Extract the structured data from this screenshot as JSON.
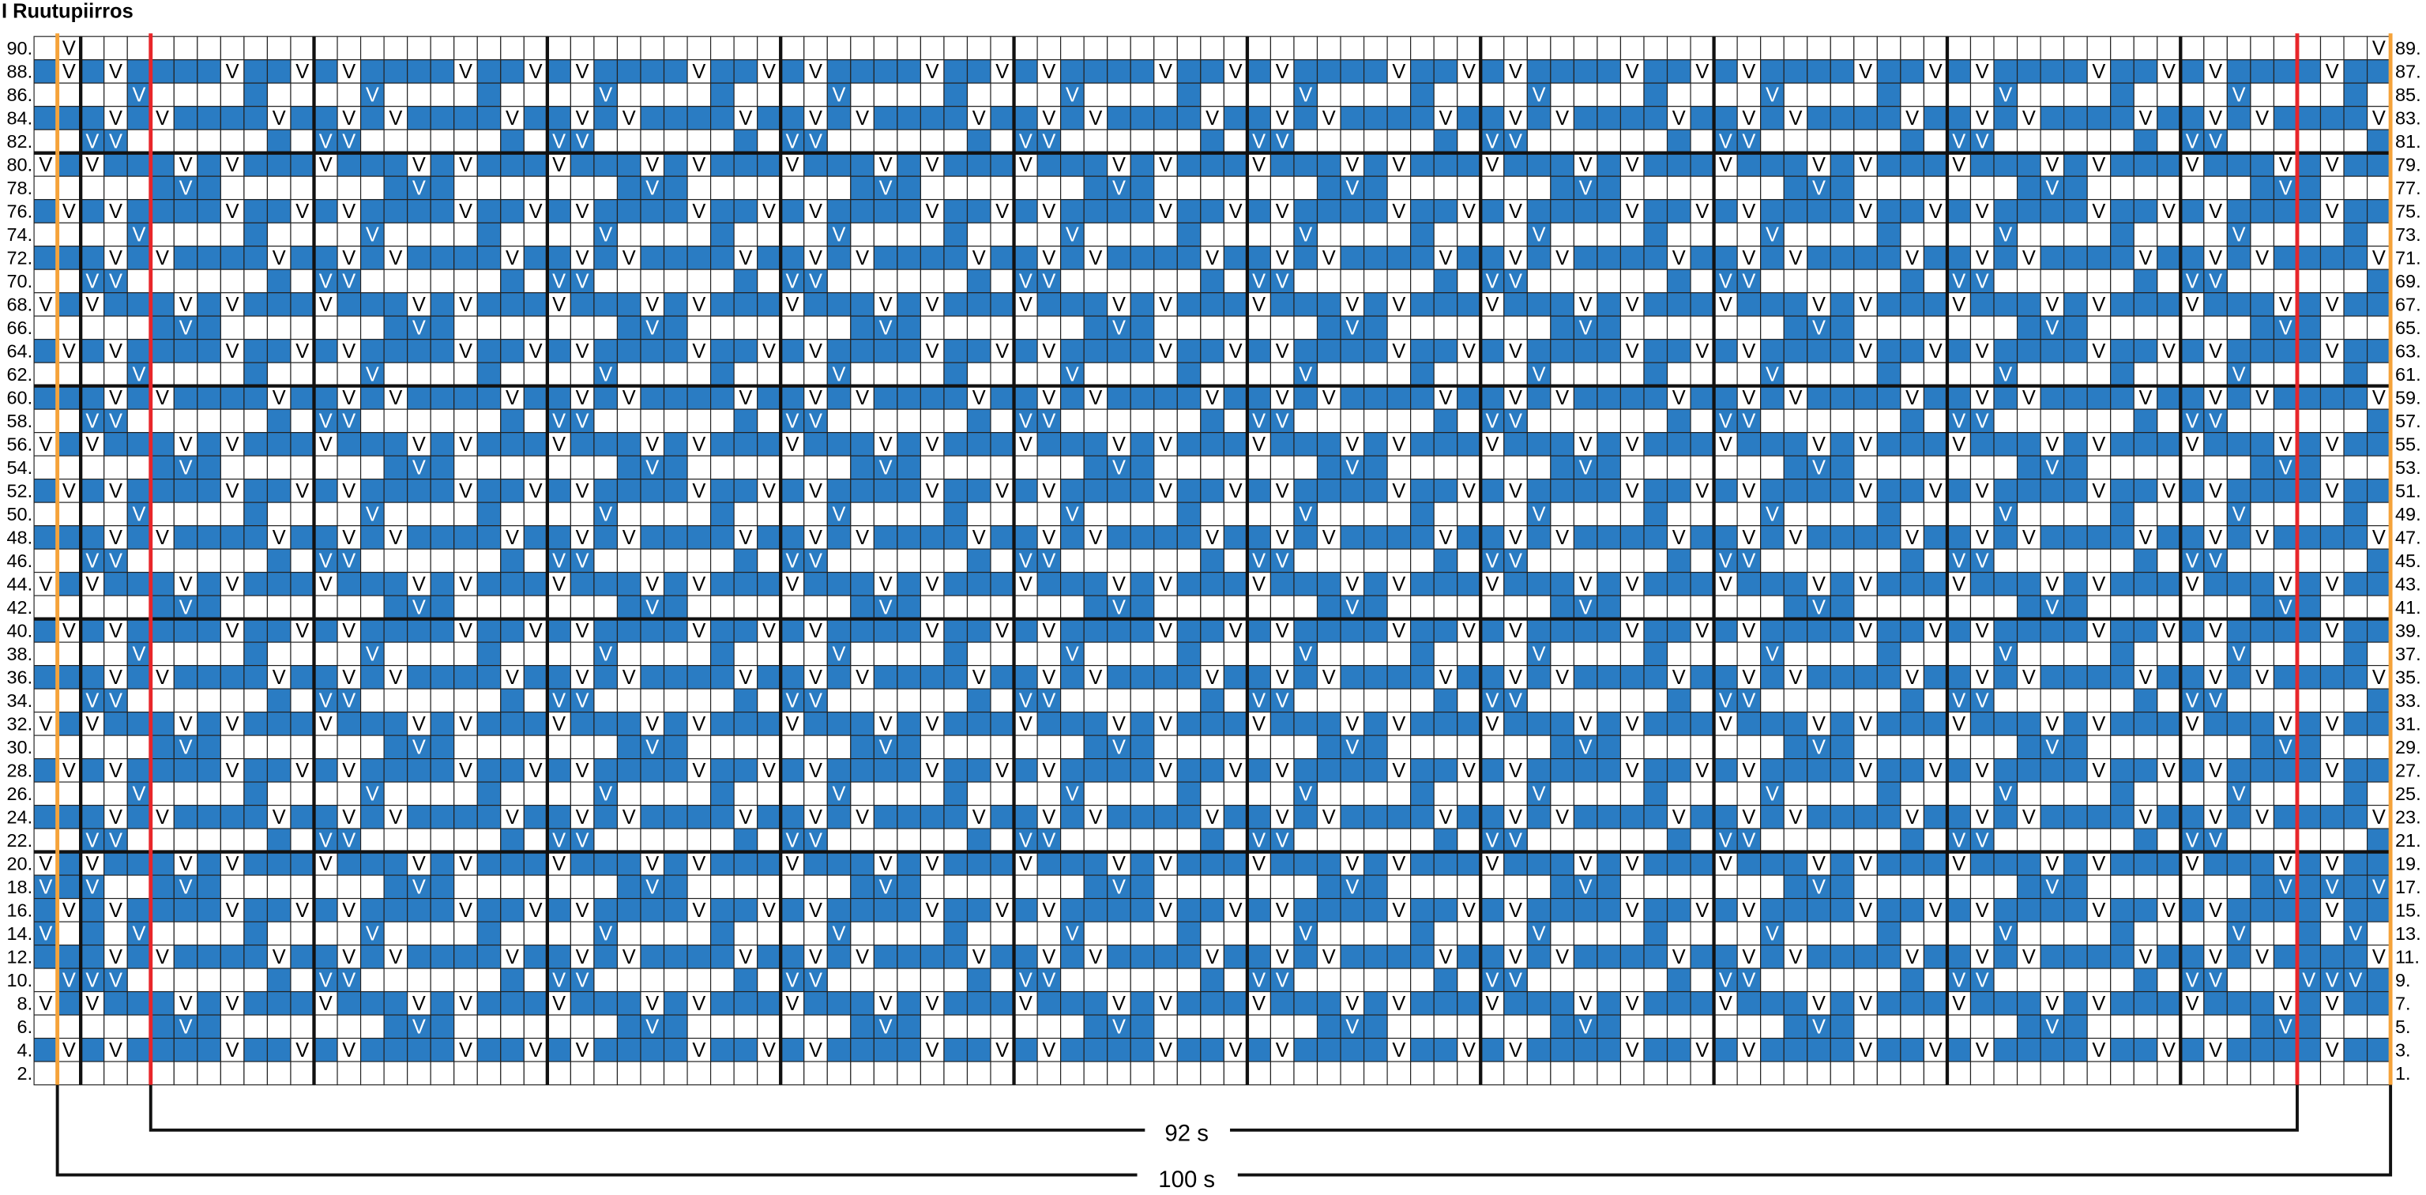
{
  "header": {
    "title": "I Ruutupiirros"
  },
  "grid": {
    "symbol": "V",
    "left_labels": [
      "90.",
      "88.",
      "86.",
      "84.",
      "82.",
      "80.",
      "78.",
      "76.",
      "74.",
      "72.",
      "70.",
      "68.",
      "66.",
      "64.",
      "62.",
      "60.",
      "58.",
      "56.",
      "54.",
      "52.",
      "50.",
      "48.",
      "46.",
      "44.",
      "42.",
      "40.",
      "38.",
      "36.",
      "34.",
      "32.",
      "30.",
      "28.",
      "26.",
      "24.",
      "22.",
      "20.",
      "18.",
      "16.",
      "14.",
      "12.",
      "10.",
      "8.",
      "6.",
      "4.",
      "2."
    ],
    "right_labels": [
      "89.",
      "87.",
      "85.",
      "83.",
      "81.",
      "79.",
      "77.",
      "75.",
      "73.",
      "71.",
      "69.",
      "67.",
      "65.",
      "63.",
      "61.",
      "59.",
      "57.",
      "55.",
      "53.",
      "51.",
      "49.",
      "47.",
      "45.",
      "43.",
      "41.",
      "39.",
      "37.",
      "35.",
      "33.",
      "31.",
      "29.",
      "27.",
      "25.",
      "23.",
      "21.",
      "19.",
      "17.",
      "15.",
      "13.",
      "11.",
      "9.",
      "7.",
      "5.",
      "3.",
      "1."
    ],
    "rows": [
      "wVwwwwwwwwwwwwwwwwwwwwwwwwwwwwwwwwwwwwwwwwwwwwwwwwwwwwwwwwwwwwwwwwwwwwwwwwwwwwwwwwwwwwwwwwwwwwwwwwwwV",
      "bVbVbbbbVbbVbVbbbbVbbVbVbbbbVbbVbVbbbbVbbVbVbbbbVbbVbVbbbbVbbVbVbbbbVbbVbVbbbbVbbVbVbbbbVbbVbVbbbbVbb",
      "wwwwvwwwwbwwwwvwwwwbwwwwvwwwwbwwwwvwwwwbwwwwvwwwwbwwwwvwwwwbwwwwvwwwwbwwwwvwwwwbwwwwvwwwwbwwwwvwwwwbw",
      "bbbVbVbbbbVbbVbVbbbbVbbVbVbbbbVbbVbVbbbbVbbVbVbbbbVbbVbVbbbbVbbVbVbbbbVbbVbVbbbbVbbVbVbbbbVbbVbVbbbbV",
      "wwvvwwwwwwbwvvwwwwwwbwvvwwwwwwbwvvwwwwwwbwvvwwwwwwbwvvwwwwwwbwvvwwwwwwbwvvwwwwwwbwvvwwwwwwbwvvwwwwwwb",
      "VbVbbbVbVbbbVbbbVbVbbbVbbbVbVbbbVbbbVbVbbbVbbbVbVbbbVbbbVbVbbbVbbbVbVbbbVbbbVbVbbbVbbbVbVbbbVbbbVbVbb",
      "wwwwwbvbwwwwwwwbvbwwwwwwwbvbwwwwwwwbvbwwwwwwwbvbwwwwwwwbvbwwwwwwwbvbwwwwwwwbvbwwwwwwwbvbwwwwwwwbvbwww",
      "bVbVbbbbVbbVbVbbbbVbbVbVbbbbVbbVbVbbbbVbbVbVbbbbVbbVbVbbbbVbbVbVbbbbVbbVbVbbbbVbbVbVbbbbVbbVbVbbbbVbb",
      "wwwwvwwwwbwwwwvwwwwbwwwwvwwwwbwwwwvwwwwbwwwwvwwwwbwwwwvwwwwbwwwwvwwwwbwwwwvwwwwbwwwwvwwwwbwwwwvwwwwbw",
      "bbbVbVbbbbVbbVbVbbbbVbbVbVbbbbVbbVbVbbbbVbbVbVbbbbVbbVbVbbbbVbbVbVbbbbVbbVbVbbbbVbbVbVbbbbVbbVbVbbbbV",
      "wwvvwwwwwwbwvvwwwwwwbwvvwwwwwwbwvvwwwwwwbwvvwwwwwwbwvvwwwwwwbwvvwwwwwwbwvvwwwwwwbwvvwwwwwwbwvvwwwwwwb",
      "VbVbbbVbVbbbVbbbVbVbbbVbbbVbVbbbVbbbVbVbbbVbbbVbVbbbVbbbVbVbbbVbbbVbVbbbVbbbVbVbbbVbbbVbVbbbVbbbVbVbb",
      "wwwwwbvbwwwwwwwbvbwwwwwwwbvbwwwwwwwbvbwwwwwwwbvbwwwwwwwbvbwwwwwwwbvbwwwwwwwbvbwwwwwwwbvbwwwwwwwbvbwww",
      "bVbVbbbbVbbVbVbbbbVbbVbVbbbbVbbVbVbbbbVbbVbVbbbbVbbVbVbbbbVbbVbVbbbbVbbVbVbbbbVbbVbVbbbbVbbVbVbbbbVbb",
      "wwwwvwwwwbwwwwvwwwwbwwwwvwwwwbwwwwvwwwwbwwwwvwwwwbwwwwvwwwwbwwwwvwwwwbwwwwvwwwwbwwwwvwwwwbwwwwvwwwwbw",
      "bbbVbVbbbbVbbVbVbbbbVbbVbVbbbbVbbVbVbbbbVbbVbVbbbbVbbVbVbbbbVbbVbVbbbbVbbVbVbbbbVbbVbVbbbbVbbVbVbbbbV",
      "wwvvwwwwwwbwvvwwwwwwbwvvwwwwwwbwvvwwwwwwbwvvwwwwwwbwvvwwwwwwbwvvwwwwwwbwvvwwwwwwbwvvwwwwwwbwvvwwwwwwb",
      "VbVbbbVbVbbbVbbbVbVbbbVbbbVbVbbbVbbbVbVbbbVbbbVbVbbbVbbbVbVbbbVbbbVbVbbbVbbbVbVbbbVbbbVbVbbbVbbbVbVbb",
      "wwwwwbvbwwwwwwwbvbwwwwwwwbvbwwwwwwwbvbwwwwwwwbvbwwwwwwwbvbwwwwwwwbvbwwwwwwwbvbwwwwwwwbvbwwwwwwwbvbwww",
      "bVbVbbbbVbbVbVbbbbVbbVbVbbbbVbbVbVbbbbVbbVbVbbbbVbbVbVbbbbVbbVbVbbbbVbbVbVbbbbVbbVbVbbbbVbbVbVbbbbVbb",
      "wwwwvwwwwbwwwwvwwwwbwwwwvwwwwbwwwwvwwwwbwwwwvwwwwbwwwwvwwwwbwwwwvwwwwbwwwwvwwwwbwwwwvwwwwbwwwwvwwwwbw",
      "bbbVbVbbbbVbbVbVbbbbVbbVbVbbbbVbbVbVbbbbVbbVbVbbbbVbbVbVbbbbVbbVbVbbbbVbbVbVbbbbVbbVbVbbbbVbbVbVbbbbV",
      "wwvvwwwwwwbwvvwwwwwwbwvvwwwwwwbwvvwwwwwwbwvvwwwwwwbwvvwwwwwwbwvvwwwwwwbwvvwwwwwwbwvvwwwwwwbwvvwwwwwwb",
      "VbVbbbVbVbbbVbbbVbVbbbVbbbVbVbbbVbbbVbVbbbVbbbVbVbbbVbbbVbVbbbVbbbVbVbbbVbbbVbVbbbVbbbVbVbbbVbbbVbVbb",
      "wwwwwbvbwwwwwwwbvbwwwwwwwbvbwwwwwwwbvbwwwwwwwbvbwwwwwwwbvbwwwwwwwbvbwwwwwwwbvbwwwwwwwbvbwwwwwwwbvbwww",
      "bVbVbbbbVbbVbVbbbbVbbVbVbbbbVbbVbVbbbbVbbVbVbbbbVbbVbVbbbbVbbVbVbbbbVbbVbVbbbbVbbVbVbbbbVbbVbVbbbbVbb",
      "wwwwvwwwwbwwwwvwwwwbwwwwvwwwwbwwwwvwwwwbwwwwvwwwwbwwwwvwwwwbwwwwvwwwwbwwwwvwwwwbwwwwvwwwwbwwwwvwwwwbw",
      "bbbVbVbbbbVbbVbVbbbbVbbVbVbbbbVbbVbVbbbbVbbVbVbbbbVbbVbVbbbbVbbVbVbbbbVbbVbVbbbbVbbVbVbbbbVbbVbVbbbbV",
      "wwvvwwwwwwbwvvwwwwwwbwvvwwwwwwbwvvwwwwwwbwvvwwwwwwbwvvwwwwwwbwvvwwwwwwbwvvwwwwwwbwvvwwwwwwbwvvwwwwwwb",
      "VbVbbbVbVbbbVbbbVbVbbbVbbbVbVbbbVbbbVbVbbbVbbbVbVbbbVbbbVbVbbbVbbbVbVbbbVbbbVbVbbbVbbbVbVbbbVbbbVbVbb",
      "wwwwwbvbwwwwwwwbvbwwwwwwwbvbwwwwwwwbvbwwwwwwwbvbwwwwwwwbvbwwwwwwwbvbwwwwwwwbvbwwwwwwwbvbwwwwwwwbvbwww",
      "bVbVbbbbVbbVbVbbbbVbbVbVbbbbVbbVbVbbbbVbbVbVbbbbVbbVbVbbbbVbbVbVbbbbVbbVbVbbbbVbbVbVbbbbVbbVbVbbbbVbb",
      "wwwwvwwwwbwwwwvwwwwbwwwwvwwwwbwwwwvwwwwbwwwwvwwwwbwwwwvwwwwbwwwwvwwwwbwwwwvwwwwbwwwwvwwwwbwwwwvwwwwbw",
      "bbbVbVbbbbVbbVbVbbbbVbbVbVbbbbVbbVbVbbbbVbbVbVbbbbVbbVbVbbbbVbbVbVbbbbVbbVbVbbbbVbbVbVbbbbVbbVbVbbbbV",
      "wwvvwwwwwwbwvvwwwwwwbwvvwwwwwwbwvvwwwwwwbwvvwwwwwwbwvvwwwwwwbwvvwwwwwwbwvvwwwwwwbwvvwwwwwwbwvvwwwwwwb",
      "VbVbbbVbVbbbVbbbVbVbbbVbbbVbVbbbVbbbVbVbbbVbbbVbVbbbVbbbVbVbbbVbbbVbVbbbVbbbVbVbbbVbbbVbVbbbVbbbVbVbb",
      "vbvwwbvbwwwwwwwbvbwwwwwwwbvbwwwwwwwbvbwwwwwwwbvbwwwwwwwbvbwwwwwwwbvbwwwwwwwbvbwwwwwwwbvbwwwwwwwbvbvbv",
      "bVbVbbbbVbbVbVbbbbVbbVbVbbbbVbbVbVbbbbVbbVbVbbbbVbbVbVbbbbVbbVbVbbbbVbbVbVbbbbVbbVbVbbbbVbbVbVbbbbVbb",
      "vwbwvwwwwbwwwwvwwwwbwwwwvwwwwbwwwwvwwwwbwwwwvwwwwbwwwwvwwwwbwwwwvwwwwbwwwwvwwwwbwwwwvwwwwbwwwwvwwbwv",
      "bbbVbVbbbbVbbVbVbbbbVbbVbVbbbbVbbVbVbbbbVbbVbVbbbbVbbVbVbbbbVbbVbVbbbbVbbVbVbbbbVbbVbVbbbbVbbVbVbbbbV",
      "wvvvwwwwwwbwvvwwwwwwbwvvwwwwwwbwvvwwwwwwbwvvwwwwwwbwvvwwwwwwbwvvwwwwwwbwvvwwwwwwbwvvwwwwwwbwvvwwwvvvb",
      "VbVbbbVbVbbbVbbbVbVbbbVbbbVbVbbbVbbbVbVbbbVbbbVbVbbbVbbbVbVbbbVbbbVbVbbbVbbbVbVbbbVbbbVbVbbbVbbbVbVbb",
      "wwwwwbvbwwwwwwwbvbwwwwwwwbvbwwwwwwwbvbwwwwwwwbvbwwwwwwwbvbwwwwwwwbvbwwwwwwwbvbwwwwwwwbvbwwwwwwwbvbwww",
      "bVbVbbbbVbbVbVbbbbVbbVbVbbbbVbbVbVbbbbVbbVbVbbbbVbbVbVbbbbVbbVbVbbbbVbbVbVbbbbVbbVbVbbbbVbbVbVbbbbVbb",
      "wwwwwwwwwwwwwwwwwwwwwwwwwwwwwwwwwwwwwwwwwwwwwwwwwwwwwwwwwwwwwwwwwwwwwwwwwwwwwwwwwwwwwwwwwwwwwwwwwwwww"
    ]
  },
  "footer": {
    "inner_width": "92 s",
    "total_width": "100 s"
  }
}
